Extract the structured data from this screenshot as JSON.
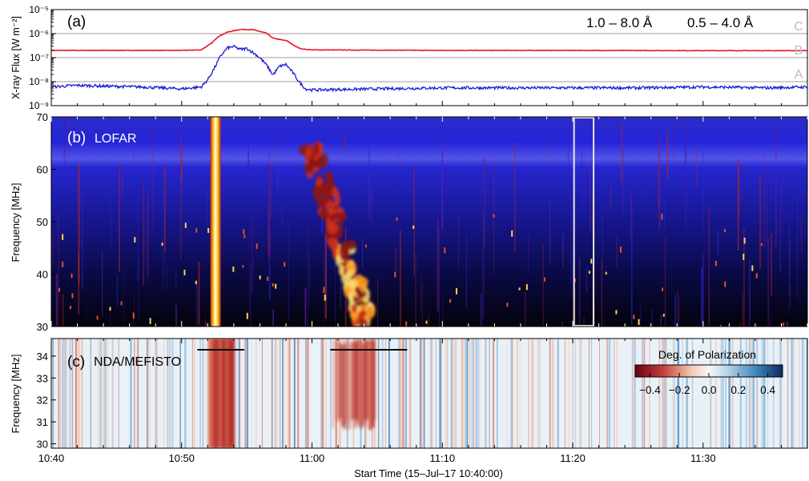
{
  "colors": {
    "long_channel": "#e8161f",
    "short_channel": "#1a1ad6",
    "goes_class_label": "#bdbdbd",
    "class_line": "#b0b0b0",
    "marker_box": "#e6e6e6",
    "bar_line": "#000000"
  },
  "chart_data": [
    {
      "type": "line",
      "panel_label": "(a)",
      "title": "",
      "ylabel": "X-ray Flux [W m⁻²]",
      "yscale": "log",
      "ylim": [
        1e-09,
        1e-05
      ],
      "ytick_labels": [
        "10⁻⁹",
        "10⁻⁸",
        "10⁻⁷",
        "10⁻⁶",
        "10⁻⁵"
      ],
      "xlim_minutes": [
        0,
        58
      ],
      "goes_classes": [
        {
          "label": "A",
          "flux": 1e-08
        },
        {
          "label": "B",
          "flux": 1e-07
        },
        {
          "label": "C",
          "flux": 1e-06
        }
      ],
      "series": [
        {
          "name": "1.0 – 8.0 Å",
          "color": "#e8161f",
          "points": [
            [
              0,
              2e-07
            ],
            [
              5,
              2e-07
            ],
            [
              10,
              2e-07
            ],
            [
              11.5,
              2.1e-07
            ],
            [
              12.3,
              4e-07
            ],
            [
              12.8,
              7.5e-07
            ],
            [
              13.5,
              1.15e-06
            ],
            [
              14.5,
              1.5e-06
            ],
            [
              15.5,
              1.45e-06
            ],
            [
              16.5,
              1.05e-06
            ],
            [
              17,
              6.5e-07
            ],
            [
              17.6,
              5.6e-07
            ],
            [
              18.1,
              5e-07
            ],
            [
              18.6,
              3.2e-07
            ],
            [
              19.2,
              2.3e-07
            ],
            [
              20,
              2.1e-07
            ],
            [
              30,
              2e-07
            ],
            [
              40,
              2e-07
            ],
            [
              50,
              1.95e-07
            ],
            [
              58,
              1.95e-07
            ]
          ]
        },
        {
          "name": "0.5 – 4.0 Å",
          "color": "#1a1ad6",
          "points": [
            [
              0,
              6e-09
            ],
            [
              2,
              7e-09
            ],
            [
              4,
              6.5e-09
            ],
            [
              7,
              6e-09
            ],
            [
              10,
              5e-09
            ],
            [
              11.5,
              6e-09
            ],
            [
              12,
              1.2e-08
            ],
            [
              12.5,
              3.5e-08
            ],
            [
              13,
              1.2e-07
            ],
            [
              13.5,
              2.5e-07
            ],
            [
              14,
              2.9e-07
            ],
            [
              14.5,
              2.2e-07
            ],
            [
              15,
              2.4e-07
            ],
            [
              15.5,
              1.6e-07
            ],
            [
              16,
              1e-07
            ],
            [
              16.5,
              5e-08
            ],
            [
              17,
              1.9e-08
            ],
            [
              17.5,
              4.3e-08
            ],
            [
              18,
              5.2e-08
            ],
            [
              18.5,
              2.5e-08
            ],
            [
              19,
              1e-08
            ],
            [
              19.5,
              5e-09
            ],
            [
              20,
              4.5e-09
            ],
            [
              25,
              5e-09
            ],
            [
              30,
              5.5e-09
            ],
            [
              35,
              5.5e-09
            ],
            [
              40,
              5.5e-09
            ],
            [
              45,
              5.5e-09
            ],
            [
              50,
              6e-09
            ],
            [
              55,
              5.5e-09
            ],
            [
              58,
              6e-09
            ]
          ]
        }
      ]
    },
    {
      "type": "heatmap",
      "panel_label": "(b)",
      "title": "",
      "annotation": "LOFAR",
      "ylabel": "Frequency [MHz]",
      "ylim": [
        30,
        70
      ],
      "ytick_labels": [
        "30",
        "40",
        "50",
        "60",
        "70"
      ],
      "xlim_minutes": [
        0,
        58
      ],
      "highlight_box_minutes": [
        40.1,
        41.6
      ],
      "bursts": [
        {
          "kind": "type III",
          "start_min": 12.2,
          "end_min": 13.0,
          "freq_range": [
            30,
            70
          ]
        },
        {
          "kind": "type III group",
          "start_min": 20.0,
          "end_min": 25.3,
          "freq_range": [
            30,
            64
          ]
        }
      ]
    },
    {
      "type": "heatmap",
      "panel_label": "(c)",
      "title": "",
      "annotation": "NDA/MEFISTO",
      "ylabel": "Frequency [MHz]",
      "ylim": [
        29.8,
        34.8
      ],
      "ytick_labels": [
        "30",
        "31",
        "32",
        "33",
        "34"
      ],
      "xlabel": "Start Time (15–Jul–17 10:40:00)",
      "xlim_minutes": [
        0,
        58
      ],
      "x_tick_labels": [
        "10:40",
        "10:50",
        "11:00",
        "11:10",
        "11:20",
        "11:30"
      ],
      "colorbar": {
        "title": "Deg. of Polarization",
        "range": [
          -0.5,
          0.5
        ],
        "tick_labels": [
          "−0.4",
          "−0.2",
          "0.0",
          "0.2",
          "0.4"
        ]
      },
      "horizontal_bars_minutes": [
        [
          11.2,
          14.8
        ],
        [
          21.4,
          27.3
        ]
      ],
      "polarization_features": [
        {
          "start_min": 12.0,
          "end_min": 13.9,
          "sign": "negative"
        },
        {
          "start_min": 21.5,
          "end_min": 24.9,
          "sign": "negative"
        }
      ]
    }
  ]
}
